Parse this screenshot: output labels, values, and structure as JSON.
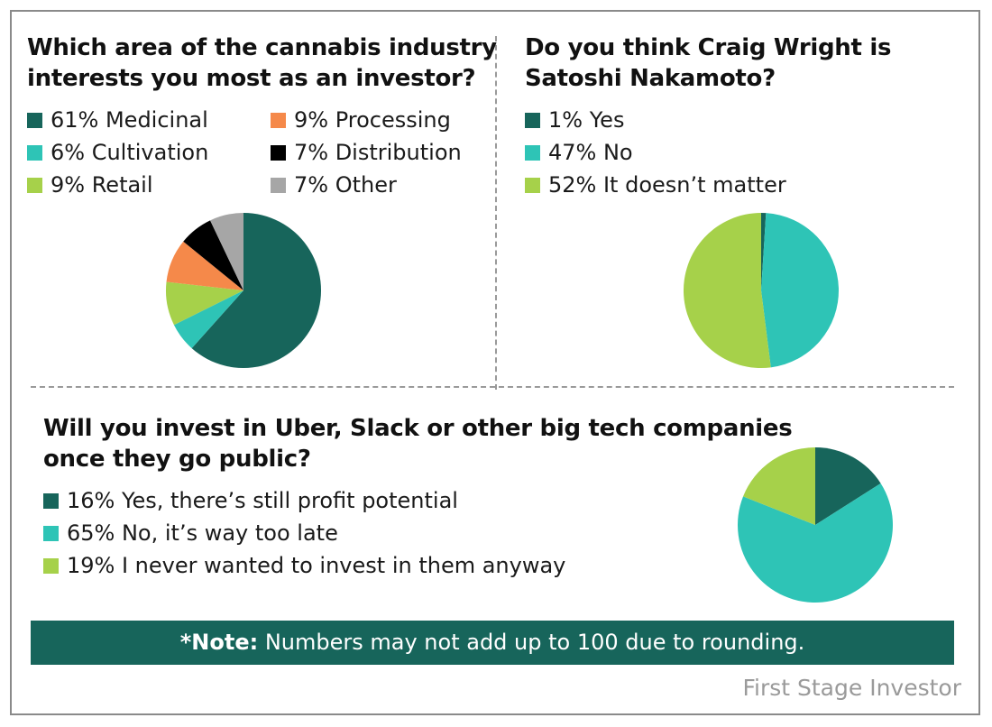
{
  "chart_data": [
    {
      "type": "pie",
      "title": "Which area of the cannabis industry interests you most as an investor?",
      "title_lines": [
        "Which area of the cannabis industry",
        "interests you most as an investor?"
      ],
      "slices": [
        {
          "label": "61% Medicinal",
          "value": 61,
          "color": "#17655b"
        },
        {
          "label": "6% Cultivation",
          "value": 6,
          "color": "#2ec4b6"
        },
        {
          "label": "9% Retail",
          "value": 9,
          "color": "#a6d14a"
        },
        {
          "label": "9% Processing",
          "value": 9,
          "color": "#f5894a"
        },
        {
          "label": "7% Distribution",
          "value": 7,
          "color": "#000000"
        },
        {
          "label": "7% Other",
          "value": 7,
          "color": "#a6a6a6"
        }
      ]
    },
    {
      "type": "pie",
      "title": "Do you think Craig Wright is Satoshi Nakamoto?",
      "title_lines": [
        "Do you think Craig Wright is",
        "Satoshi Nakamoto?"
      ],
      "slices": [
        {
          "label": "1% Yes",
          "value": 1,
          "color": "#17655b"
        },
        {
          "label": "47% No",
          "value": 47,
          "color": "#2ec4b6"
        },
        {
          "label": "52% It doesn’t matter",
          "value": 52,
          "color": "#a6d14a"
        }
      ]
    },
    {
      "type": "pie",
      "title": "Will you invest in Uber, Slack or other big tech companies once they go public?",
      "title_lines": [
        "Will you invest in Uber, Slack or other big tech companies",
        "once they go public?"
      ],
      "slices": [
        {
          "label": "16% Yes, there’s still profit potential",
          "value": 16,
          "color": "#17655b"
        },
        {
          "label": "65% No, it’s way too late",
          "value": 65,
          "color": "#2ec4b6"
        },
        {
          "label": "19% I never wanted to invest in them anyway",
          "value": 19,
          "color": "#a6d14a"
        }
      ]
    }
  ],
  "note": {
    "bold": "*Note:",
    "text": " Numbers may not add up to 100 due to rounding."
  },
  "source": "First Stage Investor"
}
